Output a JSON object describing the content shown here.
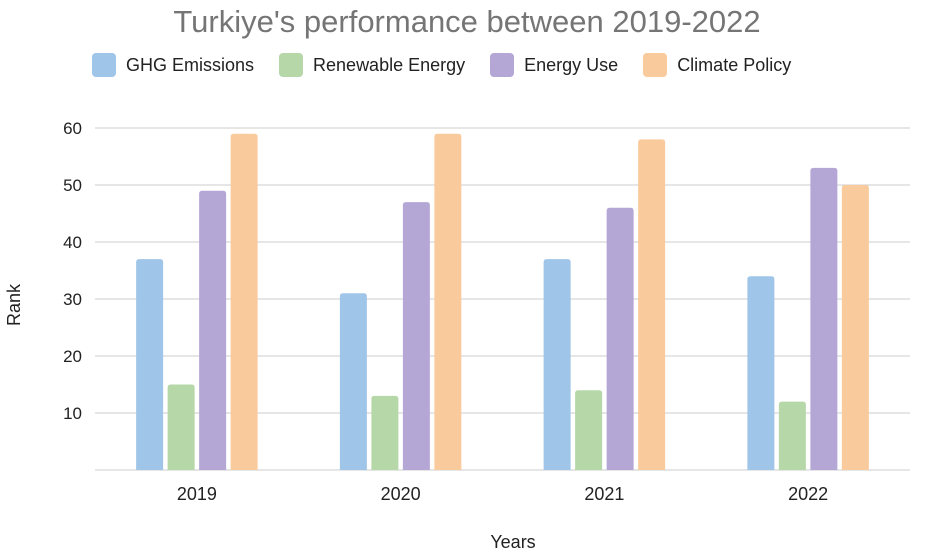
{
  "chart_data": {
    "type": "bar",
    "title": "Turkiye's performance between 2019-2022",
    "xlabel": "Years",
    "ylabel": "Rank",
    "categories": [
      "2019",
      "2020",
      "2021",
      "2022"
    ],
    "series": [
      {
        "name": "GHG Emissions",
        "color": "#9fc5e8",
        "values": [
          37,
          31,
          37,
          34
        ]
      },
      {
        "name": "Renewable Energy",
        "color": "#b6d7a8",
        "values": [
          15,
          13,
          14,
          12
        ]
      },
      {
        "name": "Energy Use",
        "color": "#b4a7d6",
        "values": [
          49,
          47,
          46,
          53
        ]
      },
      {
        "name": "Climate Policy",
        "color": "#f9cb9c",
        "values": [
          59,
          59,
          58,
          50
        ]
      }
    ],
    "ylim": [
      0,
      60
    ],
    "yticks": [
      "10",
      "20",
      "30",
      "40",
      "50",
      "60"
    ],
    "grid": true,
    "legend_position": "top"
  }
}
